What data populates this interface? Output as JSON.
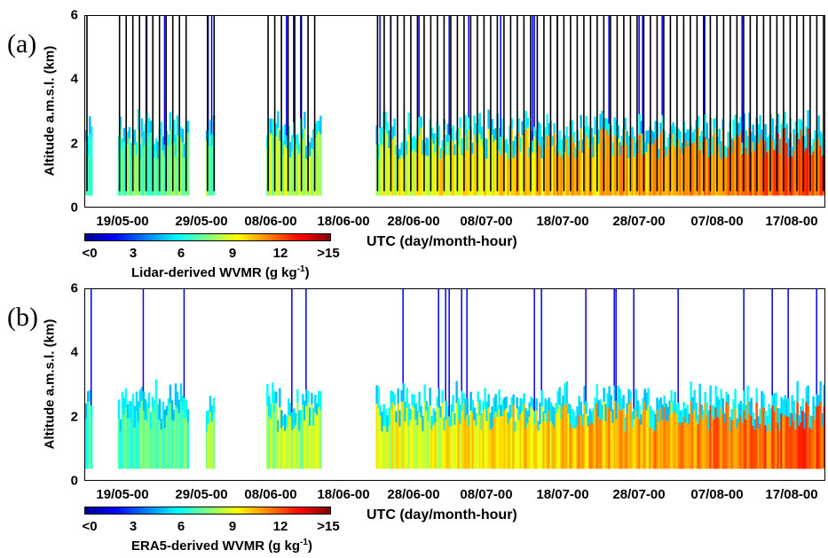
{
  "chart_data": [
    {
      "type": "heatmap",
      "panel_label": "(a)",
      "ylabel": "Altitude a.m.s.l. (km)",
      "xlabel": "UTC (day/month-hour)",
      "ylim": [
        0,
        6
      ],
      "yticks": [
        "0",
        "2",
        "4",
        "6"
      ],
      "xticks": [
        "19/05-00",
        "29/05-00",
        "08/06-00",
        "18/06-00",
        "28/06-00",
        "08/07-00",
        "18/07-00",
        "28/07-00",
        "07/08-00",
        "17/08-00"
      ],
      "colorbar": {
        "label": "Lidar-derived WVMR (g kg",
        "label_exp": "-1",
        "label_close": ")",
        "ticks": [
          "<0",
          "3",
          "6",
          "9",
          "12",
          ">15"
        ],
        "range": [
          0,
          15
        ]
      },
      "segments": [
        [
          0.0,
          0.8
        ],
        [
          4.4,
          14.0
        ],
        [
          16.3,
          17.5
        ],
        [
          24.5,
          31.8
        ],
        [
          39.3,
          100.0
        ]
      ],
      "overlay_lines": true
    },
    {
      "type": "heatmap",
      "panel_label": "(b)",
      "ylabel": "Altitude a.m.s.l. (km)",
      "xlabel": "UTC (day/month-hour)",
      "ylim": [
        0,
        6
      ],
      "yticks": [
        "0",
        "2",
        "4",
        "6"
      ],
      "xticks": [
        "19/05-00",
        "29/05-00",
        "08/06-00",
        "18/06-00",
        "28/06-00",
        "08/07-00",
        "18/07-00",
        "28/07-00",
        "07/08-00",
        "17/08-00"
      ],
      "colorbar": {
        "label": "ERA5-derived WVMR (g kg",
        "label_exp": "-1",
        "label_close": ")",
        "ticks": [
          "<0",
          "3",
          "6",
          "9",
          "12",
          ">15"
        ],
        "range": [
          0,
          15
        ]
      },
      "segments": [
        [
          0.0,
          0.8
        ],
        [
          4.4,
          14.0
        ],
        [
          16.3,
          17.5
        ],
        [
          24.5,
          31.8
        ],
        [
          39.3,
          100.0
        ]
      ],
      "overlay_lines": false
    }
  ],
  "colors": {
    "scale": [
      "#00008f",
      "#0000ff",
      "#0080ff",
      "#00ffff",
      "#80ff80",
      "#ffff00",
      "#ff8000",
      "#ff0000",
      "#800000"
    ],
    "overlay": "#000000"
  }
}
